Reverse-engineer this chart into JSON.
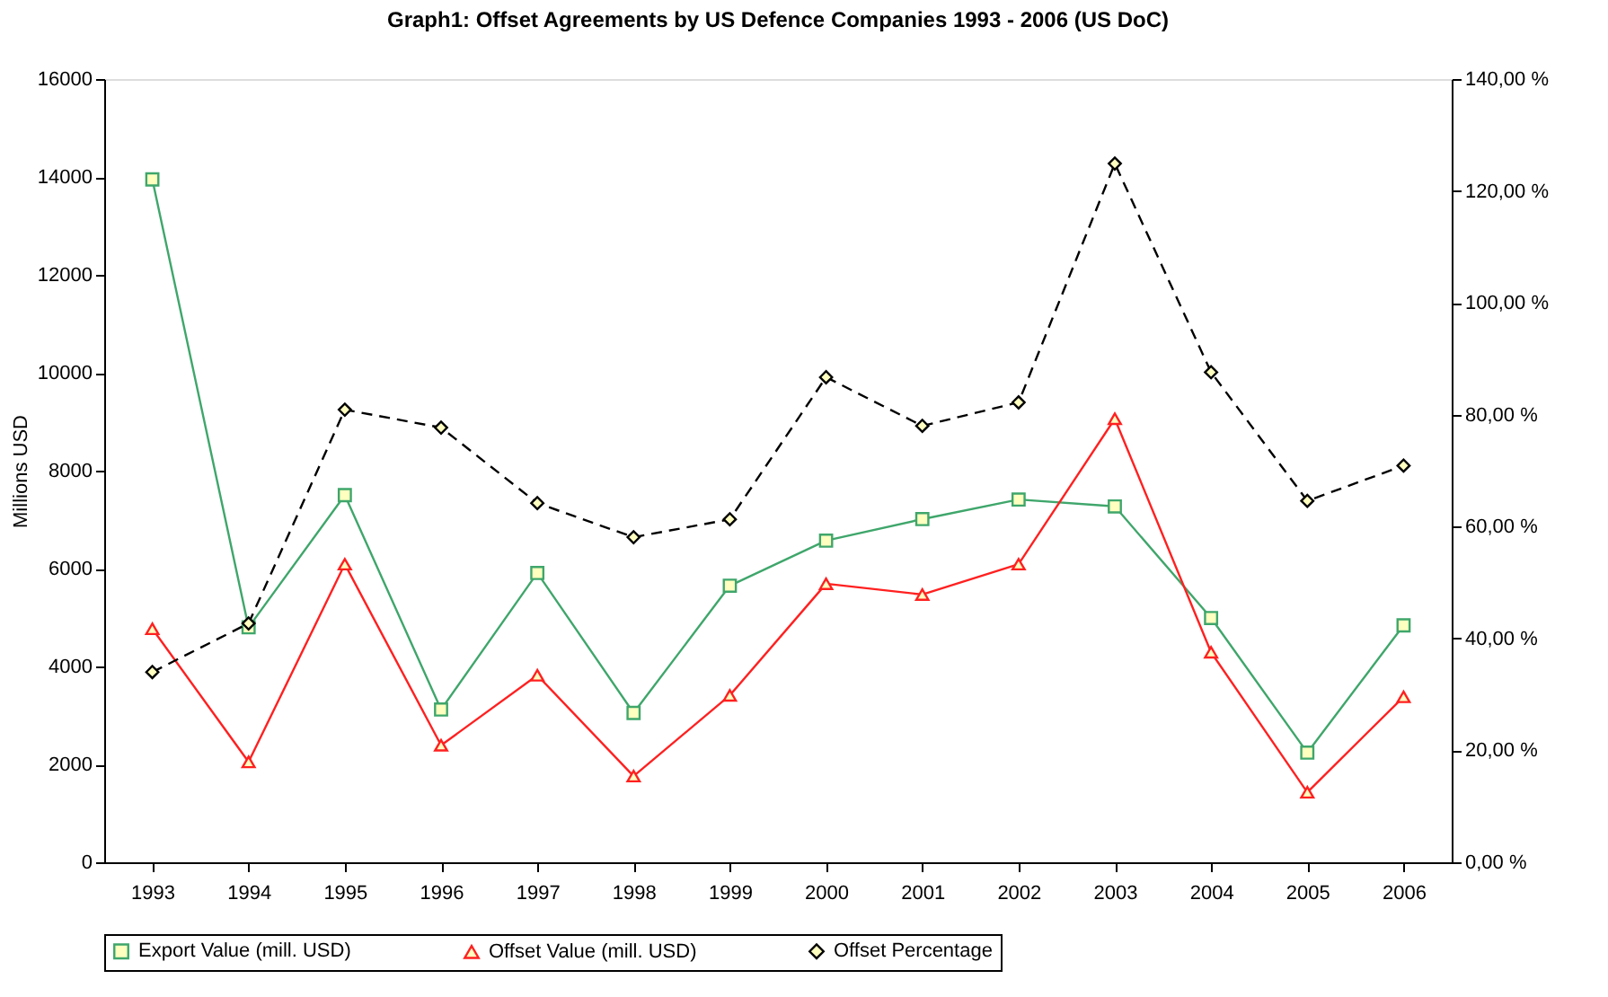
{
  "chart_data": {
    "type": "line",
    "title": "Graph1: Offset Agreements by US Defence Companies 1993 - 2006 (US DoC)",
    "ylabel": "Millions USD",
    "categories": [
      "1993",
      "1994",
      "1995",
      "1996",
      "1997",
      "1998",
      "1999",
      "2000",
      "2001",
      "2002",
      "2003",
      "2004",
      "2005",
      "2006"
    ],
    "series": [
      {
        "name": "Export Value (mill. USD)",
        "color": "#3fa66b",
        "marker": "square",
        "line_style": "solid",
        "values": [
          13950,
          4800,
          7500,
          3120,
          5910,
          3050,
          5650,
          6570,
          7010,
          7410,
          7270,
          4990,
          2240,
          4840
        ]
      },
      {
        "name": "Offset Value (mill. USD)",
        "color": "#ff2020",
        "marker": "triangle",
        "line_style": "solid",
        "values": [
          4770,
          2050,
          6090,
          2390,
          3820,
          1760,
          3410,
          5690,
          5470,
          6090,
          9060,
          4290,
          1430,
          3380
        ]
      },
      {
        "name": "Offset Percentage",
        "color": "#000000",
        "marker": "diamond",
        "line_style": "dashed",
        "axis": "y2",
        "values": [
          34.0,
          42.7,
          80.9,
          77.7,
          64.2,
          58.1,
          61.3,
          86.7,
          78.0,
          82.2,
          124.9,
          87.6,
          64.6,
          70.9
        ]
      }
    ],
    "ylim": [
      0,
      16000
    ],
    "yticks": [
      0,
      2000,
      4000,
      6000,
      8000,
      10000,
      12000,
      14000,
      16000
    ],
    "y2lim": [
      0,
      140
    ],
    "y2ticks": [
      {
        "value": 0,
        "label": "0,00 %"
      },
      {
        "value": 20,
        "label": "20,00 %"
      },
      {
        "value": 40,
        "label": "40,00 %"
      },
      {
        "value": 60,
        "label": "60,00 %"
      },
      {
        "value": 80,
        "label": "80,00 %"
      },
      {
        "value": 100,
        "label": "100,00 %"
      },
      {
        "value": 120,
        "label": "120,00 %"
      },
      {
        "value": 140,
        "label": "140,00 %"
      }
    ],
    "grid": false,
    "legend": "bottom"
  }
}
